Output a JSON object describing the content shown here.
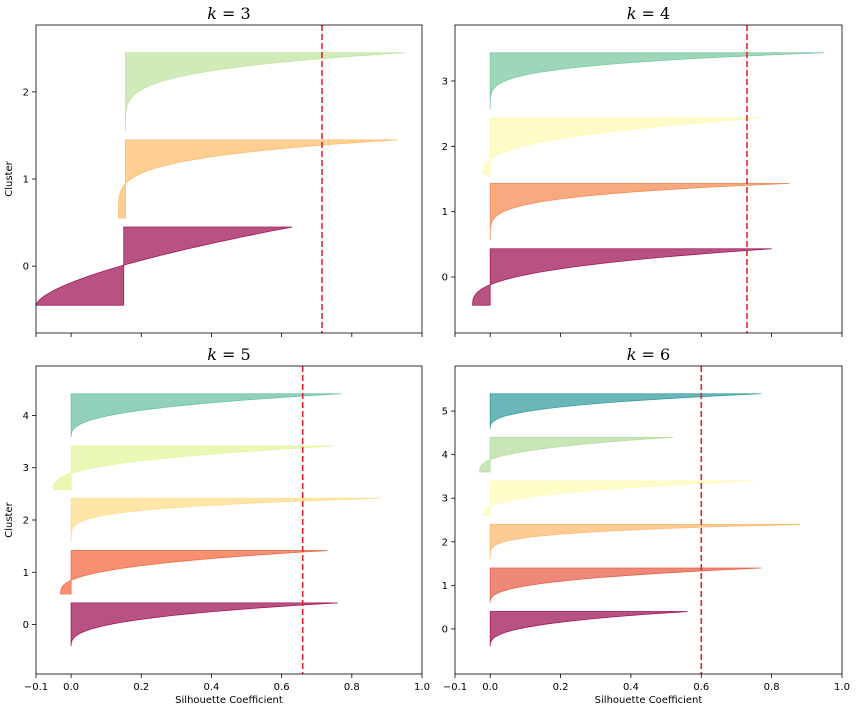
{
  "chart_data": [
    {
      "type": "area",
      "title": "k = 3",
      "xlabel": "",
      "ylabel": "Cluster",
      "xlim": [
        -0.1,
        1.0
      ],
      "yticks": [
        "0",
        "1",
        "2"
      ],
      "xticks_labeled": false,
      "average_silhouette": 0.715,
      "clusters": [
        {
          "label": "0",
          "color": "#a0185a",
          "start": -0.1,
          "main": 0.15,
          "max": 0.63,
          "shape": "steep"
        },
        {
          "label": "1",
          "color": "#fdbe6e",
          "start": 0.135,
          "main": 0.155,
          "max": 0.93,
          "shape": "flat"
        },
        {
          "label": "2",
          "color": "#c1e4a0",
          "start": 0.155,
          "main": 0.155,
          "max": 0.95,
          "shape": "flat"
        }
      ]
    },
    {
      "type": "area",
      "title": "k = 4",
      "xlabel": "",
      "ylabel": "",
      "xlim": [
        -0.1,
        1.0
      ],
      "yticks": [
        "0",
        "1",
        "2",
        "3"
      ],
      "xticks_labeled": false,
      "average_silhouette": 0.73,
      "clusters": [
        {
          "label": "0",
          "color": "#a0185a",
          "start": -0.05,
          "main": 0.0,
          "max": 0.8,
          "shape": "medium"
        },
        {
          "label": "1",
          "color": "#f68c56",
          "start": 0.0,
          "main": 0.0,
          "max": 0.85,
          "shape": "flat"
        },
        {
          "label": "2",
          "color": "#fefab7",
          "start": -0.02,
          "main": 0.0,
          "max": 0.77,
          "shape": "medium"
        },
        {
          "label": "3",
          "color": "#7dc8a1",
          "start": 0.0,
          "main": 0.0,
          "max": 0.95,
          "shape": "flat"
        }
      ]
    },
    {
      "type": "area",
      "title": "k = 5",
      "xlabel": "Silhouette Coefficient",
      "ylabel": "Cluster",
      "xlim": [
        -0.1,
        1.0
      ],
      "yticks": [
        "0",
        "1",
        "2",
        "3",
        "4"
      ],
      "xticks": [
        "−0.1",
        "0.0",
        "0.2",
        "0.4",
        "0.6",
        "0.8",
        "1.0"
      ],
      "average_silhouette": 0.66,
      "clusters": [
        {
          "label": "0",
          "color": "#a0185a",
          "start": 0.0,
          "main": 0.0,
          "max": 0.76,
          "shape": "medium"
        },
        {
          "label": "1",
          "color": "#f46a43",
          "start": -0.03,
          "main": 0.0,
          "max": 0.73,
          "shape": "medium"
        },
        {
          "label": "2",
          "color": "#fddd8b",
          "start": 0.0,
          "main": 0.0,
          "max": 0.88,
          "shape": "flat"
        },
        {
          "label": "3",
          "color": "#e3f59c",
          "start": -0.05,
          "main": 0.0,
          "max": 0.75,
          "shape": "medium"
        },
        {
          "label": "4",
          "color": "#6cc2a3",
          "start": 0.0,
          "main": 0.0,
          "max": 0.77,
          "shape": "medium"
        }
      ]
    },
    {
      "type": "area",
      "title": "k = 6",
      "xlabel": "Silhouette Coefficient",
      "ylabel": "",
      "xlim": [
        -0.1,
        1.0
      ],
      "yticks": [
        "0",
        "1",
        "2",
        "3",
        "4",
        "5"
      ],
      "xticks": [
        "−0.1",
        "0.0",
        "0.2",
        "0.4",
        "0.6",
        "0.8",
        "1.0"
      ],
      "average_silhouette": 0.6,
      "clusters": [
        {
          "label": "0",
          "color": "#a0185a",
          "start": 0.0,
          "main": 0.0,
          "max": 0.56,
          "shape": "medium"
        },
        {
          "label": "1",
          "color": "#e8604c",
          "start": 0.0,
          "main": 0.0,
          "max": 0.77,
          "shape": "medium"
        },
        {
          "label": "2",
          "color": "#fcba70",
          "start": 0.0,
          "main": 0.0,
          "max": 0.88,
          "shape": "flat"
        },
        {
          "label": "3",
          "color": "#fefbb7",
          "start": -0.02,
          "main": 0.0,
          "max": 0.75,
          "shape": "medium"
        },
        {
          "label": "4",
          "color": "#b5dd9f",
          "start": -0.03,
          "main": 0.0,
          "max": 0.52,
          "shape": "medium"
        },
        {
          "label": "5",
          "color": "#3a9ea0",
          "start": 0.0,
          "main": 0.0,
          "max": 0.77,
          "shape": "medium"
        }
      ]
    }
  ]
}
